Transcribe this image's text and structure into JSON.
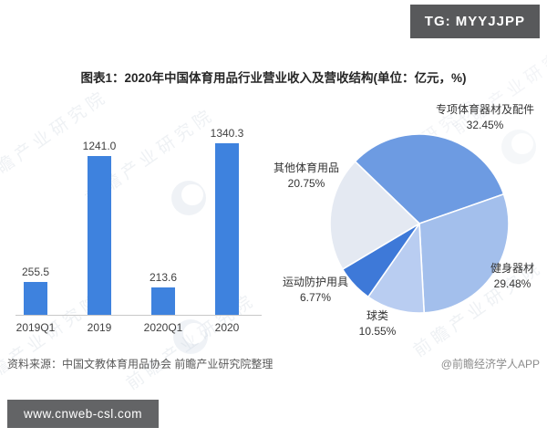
{
  "badges": {
    "tg": "TG: MYYJJPP",
    "url": "www.cnweb-csl.com"
  },
  "header": {
    "title": "图表1：2020年中国体育用品行业营业收入及营收结构(单位：亿元，%)"
  },
  "footer": {
    "source": "资料来源：中国文教体育用品协会 前瞻产业研究院整理",
    "credit": "@前瞻经济学人APP"
  },
  "watermark": {
    "text": "前瞻产业研究院"
  },
  "colors": {
    "bar": "#3e82de",
    "badge_bg": "#58595b",
    "axis": "#c9c9c9"
  },
  "chart_data": [
    {
      "type": "bar",
      "title": "",
      "categories": [
        "2019Q1",
        "2019",
        "2020Q1",
        "2020"
      ],
      "values": [
        255.5,
        1241.0,
        213.6,
        1340.3
      ],
      "value_labels": [
        "255.5",
        "1241.0",
        "213.6",
        "1340.3"
      ],
      "xlabel": "",
      "ylabel": "",
      "ylim": [
        0,
        1400
      ],
      "grid": false,
      "bar_color": "#3e82de"
    },
    {
      "type": "pie",
      "title": "",
      "labels": [
        "专项体育器材及配件",
        "健身器材",
        "球类",
        "运动防护用具",
        "其他体育用品"
      ],
      "values": [
        32.45,
        29.48,
        10.55,
        6.77,
        20.75
      ],
      "display": [
        "32.45%",
        "29.48%",
        "10.55%",
        "6.77%",
        "20.75%"
      ],
      "colors": [
        "#6d9be2",
        "#a3bfec",
        "#b9cdf1",
        "#3e79d8",
        "#e4e9f2"
      ],
      "start_angle_deg": -136,
      "direction": "clockwise",
      "legend_position": "outside-labels"
    }
  ]
}
